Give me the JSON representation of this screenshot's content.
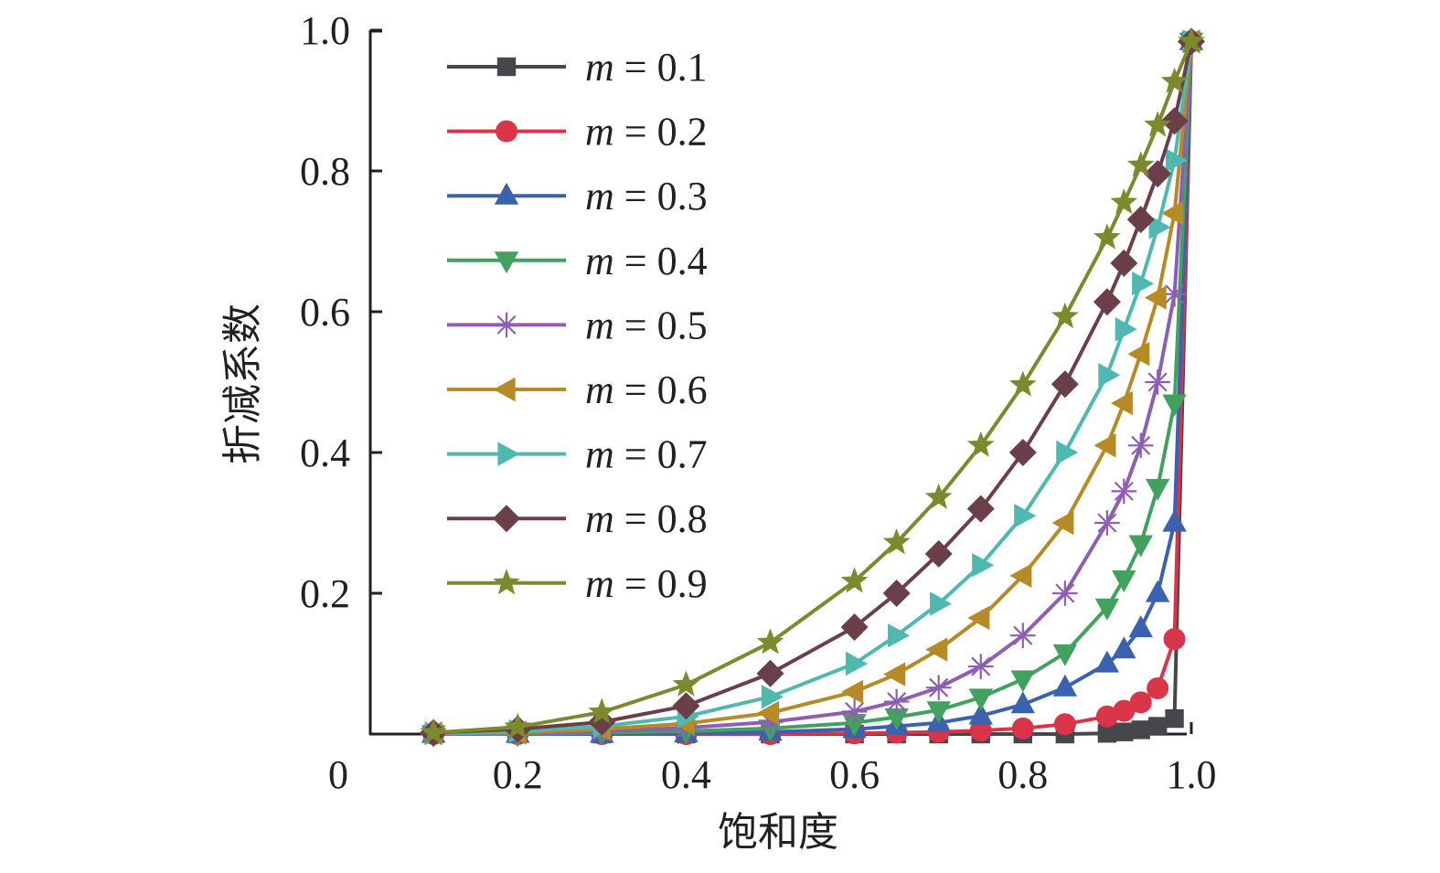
{
  "chart_data": {
    "type": "line",
    "title": "",
    "xlabel": "饱和度",
    "ylabel": "折减系数",
    "xlim": [
      0,
      1.0
    ],
    "ylim": [
      0,
      1.0
    ],
    "xticks": [
      {
        "value": 0,
        "label": "0"
      },
      {
        "value": 0.2,
        "label": "0.2"
      },
      {
        "value": 0.4,
        "label": "0.4"
      },
      {
        "value": 0.6,
        "label": "0.6"
      },
      {
        "value": 0.8,
        "label": "0.8"
      },
      {
        "value": 1.0,
        "label": "1.0"
      }
    ],
    "yticks": [
      {
        "value": 0.2,
        "label": "0.2"
      },
      {
        "value": 0.4,
        "label": "0.4"
      },
      {
        "value": 0.6,
        "label": "0.6"
      },
      {
        "value": 0.8,
        "label": "0.8"
      },
      {
        "value": 1.0,
        "label": "1.0"
      }
    ],
    "grid": false,
    "legend_position": "top-left",
    "x": [
      0.1,
      0.2,
      0.3,
      0.4,
      0.5,
      0.6,
      0.65,
      0.7,
      0.75,
      0.8,
      0.85,
      0.9,
      0.92,
      0.94,
      0.96,
      0.98,
      1.0
    ],
    "series": [
      {
        "name": "m = 0.1",
        "m_label": "m",
        "eq_label": " = 0.1",
        "color": "#46474b",
        "marker": "square",
        "values": [
          0,
          0,
          0,
          0,
          0,
          0,
          0,
          0,
          0,
          0,
          0,
          0.001,
          0.003,
          0.006,
          0.011,
          0.022,
          0.984
        ]
      },
      {
        "name": "m = 0.2",
        "m_label": "m",
        "eq_label": " = 0.2",
        "color": "#d93447",
        "marker": "circle",
        "values": [
          0,
          0,
          0,
          0,
          0,
          0.001,
          0.002,
          0.003,
          0.005,
          0.008,
          0.014,
          0.025,
          0.033,
          0.045,
          0.065,
          0.135,
          0.984
        ]
      },
      {
        "name": "m = 0.3",
        "m_label": "m",
        "eq_label": " = 0.3",
        "color": "#3a62ae",
        "marker": "triangle-up",
        "values": [
          0,
          0,
          0,
          0.001,
          0.003,
          0.007,
          0.011,
          0.016,
          0.026,
          0.042,
          0.066,
          0.1,
          0.12,
          0.15,
          0.2,
          0.3,
          0.984
        ]
      },
      {
        "name": "m = 0.4",
        "m_label": "m",
        "eq_label": " = 0.4",
        "color": "#42a15f",
        "marker": "triangle-down",
        "values": [
          0,
          0,
          0.002,
          0.004,
          0.008,
          0.016,
          0.024,
          0.034,
          0.052,
          0.078,
          0.115,
          0.18,
          0.22,
          0.27,
          0.35,
          0.47,
          0.984
        ]
      },
      {
        "name": "m = 0.5",
        "m_label": "m",
        "eq_label": " = 0.5",
        "color": "#8e5db4",
        "marker": "asterisk",
        "values": [
          0,
          0.001,
          0.004,
          0.009,
          0.017,
          0.032,
          0.046,
          0.066,
          0.096,
          0.14,
          0.2,
          0.3,
          0.345,
          0.41,
          0.5,
          0.625,
          0.984
        ]
      },
      {
        "name": "m = 0.6",
        "m_label": "m",
        "eq_label": " = 0.6",
        "color": "#b68a25",
        "marker": "triangle-left",
        "values": [
          0.001,
          0.002,
          0.007,
          0.015,
          0.03,
          0.06,
          0.085,
          0.12,
          0.165,
          0.225,
          0.3,
          0.41,
          0.47,
          0.54,
          0.62,
          0.74,
          0.984
        ]
      },
      {
        "name": "m = 0.7",
        "m_label": "m",
        "eq_label": " = 0.7",
        "color": "#4fb8b1",
        "marker": "triangle-right",
        "values": [
          0.001,
          0.004,
          0.011,
          0.025,
          0.053,
          0.1,
          0.14,
          0.185,
          0.24,
          0.31,
          0.4,
          0.51,
          0.575,
          0.64,
          0.72,
          0.815,
          0.984
        ]
      },
      {
        "name": "m = 0.8",
        "m_label": "m",
        "eq_label": " = 0.8",
        "color": "#6b3f4a",
        "marker": "diamond",
        "values": [
          0.002,
          0.007,
          0.017,
          0.04,
          0.086,
          0.152,
          0.2,
          0.256,
          0.32,
          0.4,
          0.497,
          0.614,
          0.669,
          0.731,
          0.796,
          0.871,
          0.984
        ]
      },
      {
        "name": "m = 0.9",
        "m_label": "m",
        "eq_label": " = 0.9",
        "color": "#7a8a2c",
        "marker": "star",
        "values": [
          0.002,
          0.01,
          0.031,
          0.07,
          0.13,
          0.217,
          0.272,
          0.336,
          0.41,
          0.496,
          0.593,
          0.705,
          0.755,
          0.808,
          0.865,
          0.927,
          0.984
        ]
      }
    ]
  }
}
